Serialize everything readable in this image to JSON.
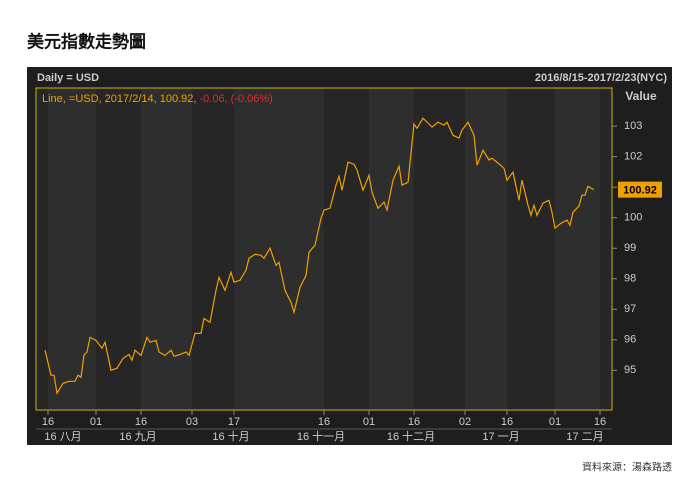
{
  "chart_data": {
    "type": "line",
    "title": "美元指數走勢圖",
    "header_left": "Daily = USD",
    "header_right": "2016/8/15-2017/2/23(NYC)",
    "legend": {
      "text": "Line, =USD, 2017/2/14, 100.92,",
      "change": "-0.06, (-0.06%)"
    },
    "y_axis_label": "Value",
    "source": "資料來源：湯森路透",
    "x": [
      "2016-08-15",
      "2016-08-17",
      "2016-08-18",
      "2016-08-19",
      "2016-08-21",
      "2016-08-23",
      "2016-08-25",
      "2016-08-26",
      "2016-08-27",
      "2016-08-28",
      "2016-08-29",
      "2016-08-30",
      "2016-09-01",
      "2016-09-03",
      "2016-09-04",
      "2016-09-06",
      "2016-09-08",
      "2016-09-10",
      "2016-09-12",
      "2016-09-13",
      "2016-09-14",
      "2016-09-16",
      "2016-09-18",
      "2016-09-19",
      "2016-09-21",
      "2016-09-22",
      "2016-09-24",
      "2016-09-26",
      "2016-09-27",
      "2016-09-29",
      "2016-10-01",
      "2016-10-02",
      "2016-10-04",
      "2016-10-06",
      "2016-10-07",
      "2016-10-09",
      "2016-10-11",
      "2016-10-12",
      "2016-10-14",
      "2016-10-16",
      "2016-10-17",
      "2016-10-19",
      "2016-10-21",
      "2016-10-22",
      "2016-10-24",
      "2016-10-26",
      "2016-10-27",
      "2016-10-29",
      "2016-10-31",
      "2016-11-01",
      "2016-11-03",
      "2016-11-05",
      "2016-11-06",
      "2016-11-08",
      "2016-11-10",
      "2016-11-11",
      "2016-11-13",
      "2016-11-15",
      "2016-11-16",
      "2016-11-18",
      "2016-11-20",
      "2016-11-21",
      "2016-11-22",
      "2016-11-24",
      "2016-11-26",
      "2016-11-27",
      "2016-11-29",
      "2016-12-01",
      "2016-12-02",
      "2016-12-04",
      "2016-12-06",
      "2016-12-07",
      "2016-12-09",
      "2016-12-11",
      "2016-12-12",
      "2016-12-14",
      "2016-12-16",
      "2016-12-17",
      "2016-12-19",
      "2016-12-21",
      "2016-12-22",
      "2016-12-24",
      "2016-12-26",
      "2016-12-27",
      "2016-12-29",
      "2016-12-31",
      "2017-01-01",
      "2017-01-03",
      "2017-01-05",
      "2017-01-06",
      "2017-01-08",
      "2017-01-10",
      "2017-01-11",
      "2017-01-13",
      "2017-01-15",
      "2017-01-16",
      "2017-01-18",
      "2017-01-20",
      "2017-01-21",
      "2017-01-23",
      "2017-01-24",
      "2017-01-25",
      "2017-01-26",
      "2017-01-28",
      "2017-01-30",
      "2017-01-31",
      "2017-02-01",
      "2017-02-03",
      "2017-02-05",
      "2017-02-06",
      "2017-02-07",
      "2017-02-09",
      "2017-02-10",
      "2017-02-11",
      "2017-02-12",
      "2017-02-13",
      "2017-02-14"
    ],
    "series": [
      {
        "name": "USD",
        "color": "#f0a000",
        "values": [
          95.66,
          94.84,
          94.84,
          94.25,
          94.57,
          94.64,
          94.64,
          94.84,
          94.77,
          95.5,
          95.6,
          96.08,
          95.98,
          95.72,
          95.92,
          95.0,
          95.07,
          95.39,
          95.52,
          95.33,
          95.66,
          95.49,
          96.08,
          95.92,
          95.98,
          95.6,
          95.49,
          95.66,
          95.46,
          95.52,
          95.6,
          95.49,
          96.21,
          96.21,
          96.7,
          96.57,
          97.62,
          98.05,
          97.62,
          98.21,
          97.89,
          97.95,
          98.28,
          98.67,
          98.8,
          98.77,
          98.67,
          99.0,
          98.44,
          98.54,
          97.62,
          97.23,
          96.9,
          97.72,
          98.11,
          98.87,
          99.1,
          99.98,
          100.25,
          100.31,
          101.07,
          101.36,
          100.9,
          101.82,
          101.75,
          101.56,
          100.9,
          101.39,
          100.84,
          100.31,
          100.51,
          100.25,
          101.23,
          101.69,
          101.07,
          101.16,
          103.07,
          102.93,
          103.26,
          103.07,
          102.97,
          103.13,
          103.03,
          103.13,
          102.7,
          102.61,
          102.87,
          103.13,
          102.7,
          101.72,
          102.21,
          101.89,
          101.95,
          101.79,
          101.62,
          101.23,
          101.49,
          100.57,
          101.23,
          100.41,
          100.08,
          100.41,
          100.08,
          100.48,
          100.57,
          100.18,
          99.66,
          99.82,
          99.92,
          99.75,
          100.18,
          100.38,
          100.74,
          100.74,
          101.03,
          100.97,
          100.92
        ]
      }
    ],
    "xlim": [
      "2016-08-12",
      "2017-02-20"
    ],
    "xticks": [
      {
        "value": "2016-08-16",
        "label": "16"
      },
      {
        "value": "2016-09-01",
        "label": "01"
      },
      {
        "value": "2016-09-16",
        "label": "16"
      },
      {
        "value": "2016-10-03",
        "label": "03"
      },
      {
        "value": "2016-10-17",
        "label": "17"
      },
      {
        "value": "2016-11-16",
        "label": "16"
      },
      {
        "value": "2016-12-01",
        "label": "01"
      },
      {
        "value": "2016-12-16",
        "label": "16"
      },
      {
        "value": "2017-01-02",
        "label": "02"
      },
      {
        "value": "2017-01-16",
        "label": "16"
      },
      {
        "value": "2017-02-01",
        "label": "01"
      },
      {
        "value": "2017-02-16",
        "label": "16"
      }
    ],
    "month_labels": [
      {
        "value": "2016-08-21",
        "label": "16 八月"
      },
      {
        "value": "2016-09-15",
        "label": "16 九月"
      },
      {
        "value": "2016-10-16",
        "label": "16 十月"
      },
      {
        "value": "2016-11-15",
        "label": "16 十一月"
      },
      {
        "value": "2016-12-15",
        "label": "16 十二月"
      },
      {
        "value": "2017-01-14",
        "label": "17 一月"
      },
      {
        "value": "2017-02-11",
        "label": "17 二月"
      }
    ],
    "ylim": [
      93.7,
      104.25
    ],
    "yticks": [
      95,
      96,
      97,
      98,
      99,
      100,
      101,
      102,
      103
    ]
  }
}
